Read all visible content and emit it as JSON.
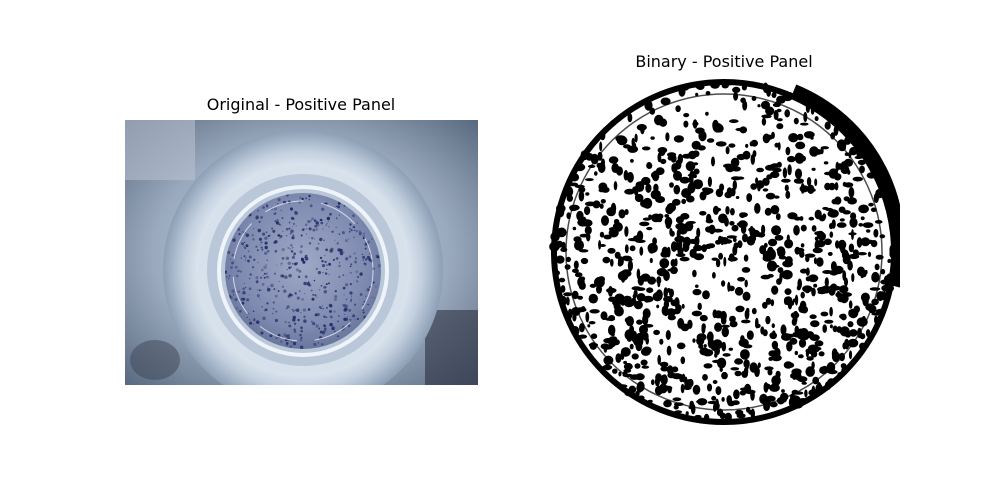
{
  "panels": [
    {
      "title": "Original - Positive Panel",
      "kind": "photograph",
      "subject": "top-down view of a culture well with a circular membrane speckled with dark blue spots"
    },
    {
      "title": "Binary - Positive Panel",
      "kind": "thresholded binary image",
      "subject": "circular mask with black foreground spots on white"
    }
  ],
  "colors": {
    "background": "#ffffff",
    "well_plastic": "#a9b7c9",
    "membrane": "#8894b3",
    "spot": "#1f2a66",
    "binary_black": "#000000",
    "binary_white": "#ffffff"
  }
}
